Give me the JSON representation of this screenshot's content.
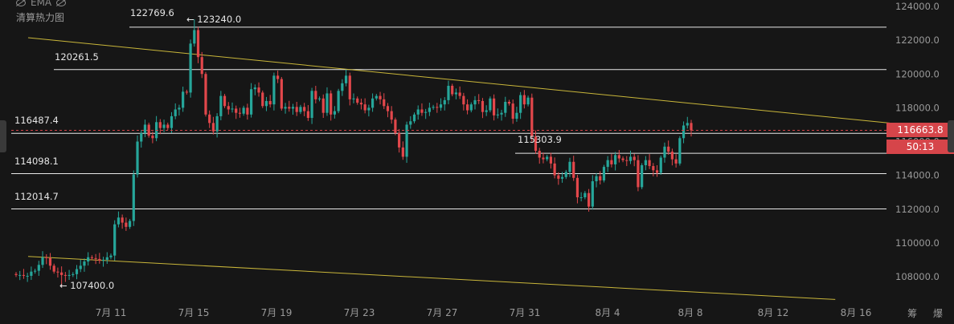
{
  "indicator": {
    "label": "EMA",
    "sub_label": "清算热力图"
  },
  "price_axis": {
    "ticks": [
      108000,
      110000,
      112000,
      114000,
      116000,
      118000,
      120000,
      122000,
      124000
    ]
  },
  "date_axis": {
    "ticks": [
      "7月 11",
      "7月 15",
      "7月 19",
      "7月 23",
      "7月 27",
      "7月 31",
      "8月 4",
      "8月 8",
      "8月 12",
      "8月 16"
    ]
  },
  "annotations": {
    "high_left": "122769.6",
    "high_right": "← 123240.0",
    "low": "← 107400.0",
    "level_120261": "120261.5",
    "level_116487": "116487.4",
    "level_115303": "115303.9",
    "level_114098": "114098.1",
    "level_112014": "112014.7"
  },
  "current": {
    "price": "116663.8",
    "countdown": "50:13"
  },
  "bottom_right_label": "筹 爆",
  "colors": {
    "up": "#26a69a",
    "down": "#e2474b",
    "trendline": "#c9b63a",
    "level": "#e8e8e8",
    "bg": "#161616"
  },
  "chart_data": {
    "type": "candlestick",
    "y_range": [
      107000,
      124200
    ],
    "levels": [
      122769.6,
      120261.5,
      116487.4,
      115303.9,
      114098.1,
      112014.7
    ],
    "current_price": 116663.8,
    "extremes": {
      "high": 123240.0,
      "low": 107400.0
    },
    "trendlines": [
      {
        "name": "upper",
        "points": [
          [
            "7月 7",
            122150
          ],
          [
            "8月 18",
            117050
          ]
        ]
      },
      {
        "name": "lower",
        "points": [
          [
            "7月 7",
            109200
          ],
          [
            "8月 15",
            106650
          ]
        ]
      }
    ],
    "candles_close": [
      108100,
      108100,
      108050,
      108050,
      108300,
      108350,
      108700,
      109150,
      109100,
      108650,
      108300,
      108250,
      108100,
      108050,
      108100,
      108150,
      108450,
      108650,
      108900,
      109150,
      109100,
      109050,
      108950,
      109000,
      109150,
      109250,
      111100,
      111500,
      111200,
      110950,
      111300,
      114050,
      116000,
      116500,
      117000,
      116350,
      116200,
      117150,
      116800,
      117000,
      116800,
      117500,
      117900,
      118000,
      118950,
      118900,
      121800,
      122600,
      121000,
      120000,
      117600,
      117100,
      116600,
      117500,
      118700,
      118100,
      117900,
      117950,
      117700,
      117650,
      118000,
      117600,
      119100,
      119200,
      118900,
      118100,
      118400,
      118200,
      119900,
      119700,
      117950,
      118050,
      117950,
      118050,
      117750,
      118050,
      117800,
      117400,
      119000,
      118500,
      118550,
      117700,
      118850,
      117600,
      117800,
      119000,
      119450,
      119900,
      118500,
      118550,
      118300,
      118200,
      117850,
      118000,
      118550,
      118700,
      118500,
      118100,
      117800,
      117300,
      116500,
      115650,
      115100,
      117000,
      117200,
      117600,
      117900,
      117700,
      117750,
      118000,
      118050,
      118000,
      118200,
      118450,
      119300,
      118800,
      118900,
      118700,
      118200,
      117850,
      118200,
      118450,
      118400,
      117750,
      117850,
      118550,
      117550,
      117600,
      117700,
      118350,
      118250,
      117350,
      117700,
      118750,
      118200,
      118600,
      116300,
      115450,
      115050,
      114950,
      115100,
      114700,
      114000,
      113800,
      113900,
      114200,
      114800,
      113850,
      112700,
      112700,
      112950,
      112150,
      113650,
      113950,
      113700,
      114500,
      114900,
      114650,
      115200,
      115000,
      114900,
      114850,
      115100,
      114900,
      113300,
      114600,
      114900,
      114550,
      114300,
      114150,
      115050,
      115700,
      115400,
      114950,
      114700,
      116200,
      116950,
      117100,
      116663.8
    ]
  }
}
